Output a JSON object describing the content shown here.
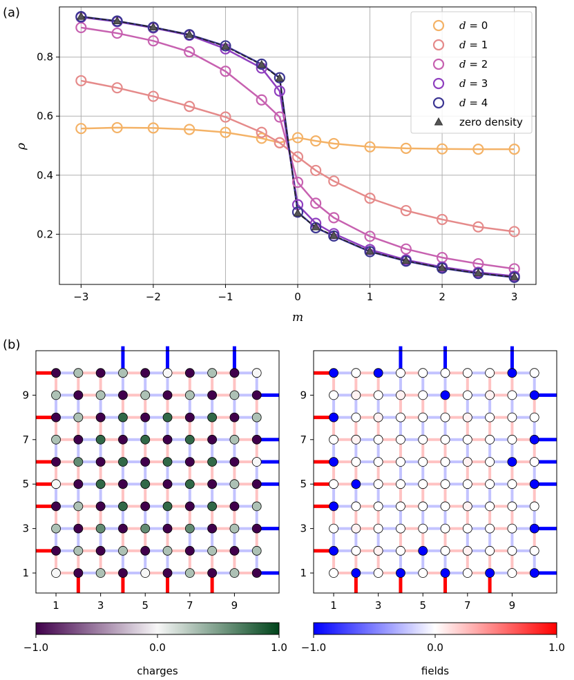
{
  "panel_labels": {
    "a": "(a)",
    "b": "(b)"
  },
  "chart_data": [
    {
      "type": "line",
      "xlabel": "m",
      "ylabel": "ρ",
      "xlim": [
        -3.3,
        3.3
      ],
      "ylim": [
        0.03,
        0.97
      ],
      "x_ticks": [
        -3,
        -2,
        -1,
        0,
        1,
        2,
        3
      ],
      "x_tick_labels": [
        "−3",
        "−2",
        "−1",
        "0",
        "1",
        "2",
        "3"
      ],
      "y_ticks": [
        0.2,
        0.4,
        0.6,
        0.8
      ],
      "y_tick_labels": [
        "0.2",
        "0.4",
        "0.6",
        "0.8"
      ],
      "grid": true,
      "legend_position": "top-right",
      "x": [
        -3,
        -2.5,
        -2,
        -1.5,
        -1,
        -0.5,
        -0.25,
        0,
        0.25,
        0.5,
        1,
        1.5,
        2,
        2.5,
        3
      ],
      "series": [
        {
          "name": "d = 0",
          "color": "#f4b266",
          "marker": "circle",
          "values": [
            0.558,
            0.561,
            0.56,
            0.555,
            0.545,
            0.525,
            0.51,
            0.527,
            0.516,
            0.507,
            0.496,
            0.491,
            0.489,
            0.488,
            0.488
          ]
        },
        {
          "name": "d = 1",
          "color": "#e58a8a",
          "marker": "circle",
          "values": [
            0.72,
            0.696,
            0.667,
            0.633,
            0.597,
            0.545,
            0.51,
            0.462,
            0.416,
            0.38,
            0.322,
            0.28,
            0.25,
            0.225,
            0.209
          ]
        },
        {
          "name": "d = 2",
          "color": "#c761b0",
          "marker": "circle",
          "values": [
            0.9,
            0.881,
            0.855,
            0.818,
            0.752,
            0.655,
            0.597,
            0.376,
            0.305,
            0.256,
            0.193,
            0.15,
            0.121,
            0.1,
            0.083
          ]
        },
        {
          "name": "d = 3",
          "color": "#8f3fbf",
          "marker": "circle",
          "values": [
            0.935,
            0.92,
            0.899,
            0.874,
            0.828,
            0.763,
            0.685,
            0.3,
            0.237,
            0.202,
            0.148,
            0.113,
            0.089,
            0.071,
            0.058
          ]
        },
        {
          "name": "d = 4",
          "color": "#3b3592",
          "marker": "circle",
          "values": [
            0.937,
            0.922,
            0.901,
            0.876,
            0.838,
            0.776,
            0.73,
            0.275,
            0.222,
            0.194,
            0.141,
            0.109,
            0.085,
            0.067,
            0.054
          ]
        },
        {
          "name": "zero density",
          "color": "#404040",
          "marker": "triangle",
          "values": [
            0.937,
            0.922,
            0.901,
            0.876,
            0.836,
            0.774,
            0.728,
            0.271,
            0.224,
            0.195,
            0.142,
            0.11,
            0.086,
            0.068,
            0.055
          ]
        }
      ],
      "legend_entries": [
        {
          "prefix": "d",
          "rest": " = 0"
        },
        {
          "prefix": "d",
          "rest": " = 1"
        },
        {
          "prefix": "d",
          "rest": " = 2"
        },
        {
          "prefix": "d",
          "rest": " = 3"
        },
        {
          "prefix": "d",
          "rest": " = 4"
        },
        {
          "prefix": "",
          "rest": "zero density"
        }
      ]
    },
    {
      "type": "heatmap",
      "panel": "charges",
      "grid_size": [
        10,
        10
      ],
      "x_ticks": [
        1,
        3,
        5,
        7,
        9
      ],
      "x_tick_labels": [
        "1",
        "3",
        "5",
        "7",
        "9"
      ],
      "y_ticks": [
        1,
        3,
        5,
        7,
        9
      ],
      "y_tick_labels": [
        "1",
        "3",
        "5",
        "7",
        "9"
      ],
      "colorbar": {
        "label": "charges",
        "ticks": [
          -1.0,
          0.0,
          1.0
        ],
        "tick_labels": [
          "−1.0",
          "0.0",
          "1.0"
        ],
        "colors": [
          "#40004b",
          "#f7f7f7",
          "#00441b"
        ]
      },
      "site_values_top_row_first": [
        [
          -1.0,
          0.3,
          -1.0,
          0.3,
          -1.0,
          0.0,
          -1.0,
          0.3,
          -1.0,
          0.0
        ],
        [
          0.3,
          -1.0,
          0.3,
          -1.0,
          0.3,
          -1.0,
          0.3,
          -1.0,
          0.3,
          -1.0
        ],
        [
          -1.0,
          0.3,
          -1.0,
          0.8,
          -1.0,
          0.8,
          -1.0,
          0.8,
          -1.0,
          0.3
        ],
        [
          0.3,
          -1.0,
          0.8,
          -1.0,
          0.8,
          -1.0,
          0.8,
          -1.0,
          0.3,
          -1.0
        ],
        [
          -1.0,
          0.6,
          -1.0,
          0.8,
          -1.0,
          0.8,
          -1.0,
          0.8,
          -1.0,
          0.0
        ],
        [
          0.0,
          -1.0,
          0.8,
          -1.0,
          0.8,
          -1.0,
          0.8,
          -1.0,
          0.3,
          -1.0
        ],
        [
          -1.0,
          0.3,
          -1.0,
          0.8,
          -1.0,
          0.8,
          -1.0,
          0.8,
          -1.0,
          0.3
        ],
        [
          0.3,
          -1.0,
          0.6,
          -1.0,
          0.6,
          -1.0,
          0.6,
          -1.0,
          0.3,
          -1.0
        ],
        [
          -1.0,
          0.3,
          -1.0,
          0.3,
          -1.0,
          0.3,
          -1.0,
          0.3,
          -1.0,
          0.3
        ],
        [
          0.0,
          -1.0,
          0.3,
          -1.0,
          0.0,
          -1.0,
          0.3,
          -1.0,
          0.3,
          -1.0
        ]
      ],
      "boundary_fields": {
        "top": [
          0,
          0,
          0,
          -1,
          0,
          -1,
          0,
          0,
          -1,
          0
        ],
        "bottom": [
          0,
          1,
          0,
          1,
          0,
          1,
          0,
          1,
          0,
          0
        ],
        "left": [
          1,
          0,
          1,
          0,
          1,
          1,
          1,
          0,
          1,
          0
        ],
        "right": [
          0,
          -1,
          0,
          -1,
          -1,
          -1,
          0,
          -1,
          0,
          -1
        ]
      }
    },
    {
      "type": "heatmap",
      "panel": "fields",
      "grid_size": [
        10,
        10
      ],
      "x_ticks": [
        1,
        3,
        5,
        7,
        9
      ],
      "x_tick_labels": [
        "1",
        "3",
        "5",
        "7",
        "9"
      ],
      "y_ticks": [
        1,
        3,
        5,
        7,
        9
      ],
      "y_tick_labels": [
        "1",
        "3",
        "5",
        "7",
        "9"
      ],
      "colorbar": {
        "label": "fields",
        "ticks": [
          -1.0,
          0.0,
          1.0
        ],
        "tick_labels": [
          "−1.0",
          "0.0",
          "1.0"
        ],
        "colors": [
          "#0000ff",
          "#ffffff",
          "#ff0000"
        ]
      },
      "site_values_top_row_first": [
        [
          -1.0,
          0.0,
          -1.0,
          0.0,
          0.0,
          0.0,
          0.0,
          0.0,
          -1.0,
          0.0
        ],
        [
          0.0,
          0.05,
          0.0,
          0.05,
          0.0,
          -1.0,
          0.0,
          0.05,
          0.0,
          -1.0
        ],
        [
          -1.0,
          0.0,
          0.05,
          0.0,
          0.0,
          0.0,
          0.05,
          0.0,
          0.0,
          0.0
        ],
        [
          0.0,
          0.05,
          0.0,
          0.0,
          0.0,
          0.0,
          0.0,
          0.0,
          0.0,
          -1.0
        ],
        [
          -1.0,
          0.0,
          0.0,
          0.0,
          0.0,
          0.0,
          0.05,
          0.0,
          -1.0,
          0.0
        ],
        [
          0.0,
          -1.0,
          0.0,
          0.0,
          0.0,
          0.0,
          0.0,
          0.0,
          0.0,
          -1.0
        ],
        [
          -1.0,
          0.0,
          0.0,
          0.0,
          0.0,
          0.0,
          0.05,
          0.0,
          0.0,
          0.0
        ],
        [
          0.0,
          0.05,
          0.0,
          0.0,
          0.0,
          0.0,
          0.0,
          0.0,
          0.0,
          -1.0
        ],
        [
          -1.0,
          0.0,
          0.05,
          0.0,
          -1.0,
          0.0,
          0.05,
          0.0,
          0.0,
          0.0
        ],
        [
          0.0,
          -1.0,
          0.0,
          -1.0,
          0.0,
          -1.0,
          0.0,
          -1.0,
          0.0,
          -1.0
        ]
      ],
      "boundary_fields": {
        "top": [
          0,
          0,
          0,
          -1,
          0,
          -1,
          0,
          0,
          -1,
          0
        ],
        "bottom": [
          0,
          1,
          0,
          1,
          0,
          1,
          0,
          1,
          0,
          0
        ],
        "left": [
          1,
          0,
          1,
          0,
          1,
          1,
          1,
          0,
          1,
          0
        ],
        "right": [
          0,
          -1,
          0,
          -1,
          -1,
          -1,
          0,
          -1,
          0,
          -1
        ]
      }
    }
  ]
}
